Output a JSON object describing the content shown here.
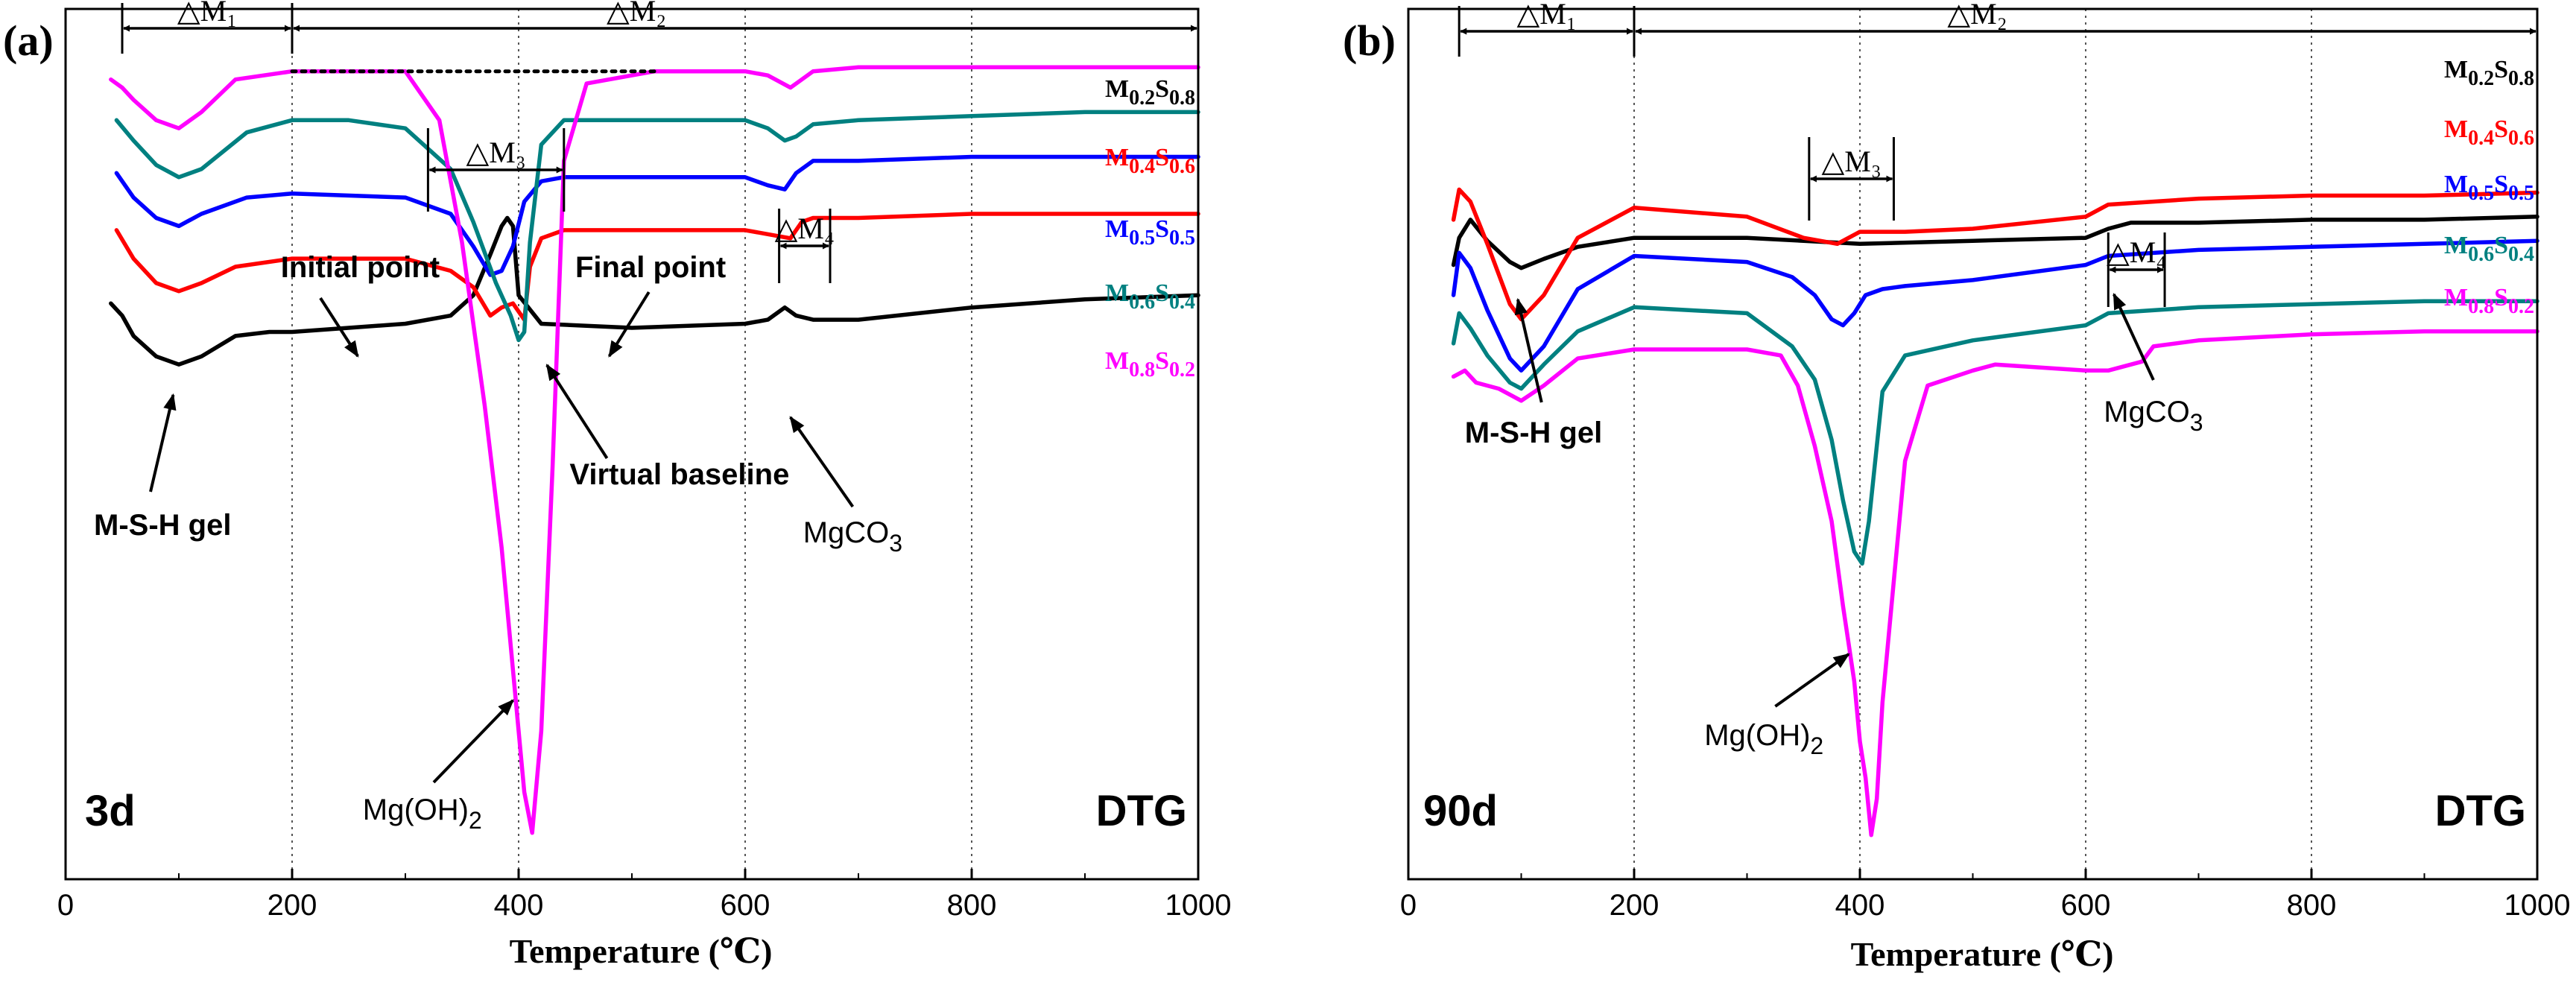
{
  "chart_data": [
    {
      "type": "line",
      "panel_label": "(a)",
      "age_label": "3d",
      "technique_label": "DTG",
      "xlabel_main": "Temperature",
      "xlabel_unit": "(℃)",
      "ylabel": "",
      "xlim": [
        0,
        1000
      ],
      "x_ticks": [
        0,
        200,
        400,
        600,
        800,
        1000
      ],
      "x_tick_labels": [
        "0",
        "200",
        "400",
        "600",
        "800",
        "1000"
      ],
      "vertical_gridlines": [
        200,
        400,
        600,
        800
      ],
      "grid": "dotted vertical lines at 200, 400, 600, 800",
      "legend": "inline labels at right end of each curve",
      "region_labels": {
        "dm1": "△M₁",
        "dm2": "△M₂",
        "dm3": "△M₃",
        "dm4": "△M₄"
      },
      "region_ranges": {
        "dm1": [
          50,
          200
        ],
        "dm2": [
          200,
          1000
        ],
        "dm3": [
          320,
          440
        ],
        "dm4": [
          630,
          675
        ]
      },
      "annotations": {
        "msh": "M-S-H gel",
        "mgoh_main": "Mg(OH)",
        "mgoh_sub": "2",
        "mgco3_main": "MgCO",
        "mgco3_sub": "3",
        "initial_point": "Initial point",
        "final_point": "Final point",
        "virtual_baseline": "Virtual baseline"
      },
      "virtual_baseline_range": [
        200,
        520
      ],
      "series": [
        {
          "label_m": "0.2",
          "label_s": "0.8",
          "color": "#000000",
          "x": [
            40,
            50,
            60,
            80,
            100,
            120,
            150,
            180,
            200,
            250,
            300,
            340,
            360,
            375,
            385,
            390,
            395,
            400,
            420,
            500,
            600,
            620,
            635,
            645,
            660,
            700,
            800,
            900,
            1000
          ],
          "y": [
            6.5,
            6.8,
            7.3,
            7.8,
            8.0,
            7.8,
            7.3,
            7.2,
            7.2,
            7.1,
            7.0,
            6.8,
            6.3,
            5.3,
            4.6,
            4.4,
            4.6,
            6.3,
            7.0,
            7.1,
            7.0,
            6.9,
            6.6,
            6.8,
            6.9,
            6.9,
            6.6,
            6.4,
            6.3
          ]
        },
        {
          "label_m": "0.4",
          "label_s": "0.6",
          "color": "#ff0000",
          "x": [
            45,
            60,
            80,
            100,
            120,
            150,
            200,
            300,
            340,
            360,
            375,
            385,
            395,
            405,
            410,
            420,
            440,
            500,
            600,
            640,
            650,
            660,
            700,
            800,
            900,
            1000
          ],
          "y": [
            4.7,
            5.4,
            6.0,
            6.2,
            6.0,
            5.6,
            5.4,
            5.4,
            5.7,
            6.1,
            6.8,
            6.6,
            6.5,
            6.9,
            5.6,
            4.9,
            4.7,
            4.7,
            4.7,
            4.9,
            4.5,
            4.4,
            4.4,
            4.3,
            4.3,
            4.3
          ]
        },
        {
          "label_m": "0.5",
          "label_s": "0.5",
          "color": "#0000ff",
          "x": [
            45,
            60,
            80,
            100,
            120,
            160,
            200,
            300,
            340,
            360,
            375,
            385,
            395,
            405,
            420,
            440,
            500,
            600,
            620,
            635,
            645,
            660,
            700,
            800,
            900,
            1000
          ],
          "y": [
            3.3,
            3.9,
            4.4,
            4.6,
            4.3,
            3.9,
            3.8,
            3.9,
            4.3,
            5.1,
            5.8,
            5.7,
            5.1,
            4.0,
            3.5,
            3.4,
            3.4,
            3.4,
            3.6,
            3.7,
            3.3,
            3.0,
            3.0,
            2.9,
            2.9,
            2.9
          ]
        },
        {
          "label_m": "0.6",
          "label_s": "0.4",
          "color": "#008080",
          "x": [
            45,
            60,
            80,
            100,
            120,
            160,
            200,
            250,
            300,
            340,
            360,
            380,
            393,
            400,
            405,
            410,
            420,
            440,
            500,
            600,
            620,
            635,
            645,
            660,
            700,
            800,
            900,
            1000
          ],
          "y": [
            2.0,
            2.5,
            3.1,
            3.4,
            3.2,
            2.3,
            2.0,
            2.0,
            2.2,
            3.2,
            4.5,
            6.0,
            6.8,
            7.4,
            7.2,
            5.0,
            2.6,
            2.0,
            2.0,
            2.0,
            2.2,
            2.5,
            2.4,
            2.1,
            2.0,
            1.9,
            1.8,
            1.8
          ]
        },
        {
          "label_m": "0.8",
          "label_s": "0.2",
          "color": "#ff00ff",
          "x": [
            40,
            50,
            60,
            80,
            100,
            120,
            150,
            200,
            300,
            330,
            350,
            370,
            385,
            395,
            405,
            412,
            420,
            430,
            440,
            460,
            520,
            600,
            620,
            640,
            650,
            660,
            700,
            800,
            900,
            1000
          ],
          "y": [
            1.0,
            1.2,
            1.5,
            2.0,
            2.2,
            1.8,
            1.0,
            0.8,
            0.8,
            2.0,
            5.0,
            9.0,
            12.5,
            15.5,
            18.5,
            19.5,
            17.0,
            10.5,
            3.0,
            1.1,
            0.8,
            0.8,
            0.9,
            1.2,
            1.0,
            0.8,
            0.7,
            0.7,
            0.7,
            0.7
          ]
        }
      ]
    },
    {
      "type": "line",
      "panel_label": "(b)",
      "age_label": "90d",
      "technique_label": "DTG",
      "xlabel_main": "Temperature",
      "xlabel_unit": "(℃)",
      "ylabel": "",
      "xlim": [
        0,
        1000
      ],
      "x_ticks": [
        0,
        200,
        400,
        600,
        800,
        1000
      ],
      "x_tick_labels": [
        "0",
        "200",
        "400",
        "600",
        "800",
        "1000"
      ],
      "vertical_gridlines": [
        200,
        400,
        600,
        800
      ],
      "grid": "dotted vertical lines at 200, 400, 600, 800",
      "legend": "inline labels at right end of each curve",
      "region_labels": {
        "dm1": "△M₁",
        "dm2": "△M₂",
        "dm3": "△M₃",
        "dm4": "△M₄"
      },
      "region_ranges": {
        "dm1": [
          45,
          200
        ],
        "dm2": [
          200,
          1000
        ],
        "dm3": [
          355,
          430
        ],
        "dm4": [
          620,
          670
        ]
      },
      "annotations": {
        "msh": "M-S-H gel",
        "mgoh_main": "Mg(OH)",
        "mgoh_sub": "2",
        "mgco3_main": "MgCO",
        "mgco3_sub": "3"
      },
      "series": [
        {
          "label_m": "0.2",
          "label_s": "0.8",
          "color": "#000000",
          "x": [
            40,
            45,
            55,
            70,
            90,
            100,
            120,
            150,
            200,
            300,
            400,
            500,
            600,
            620,
            640,
            700,
            800,
            900,
            1000
          ],
          "y": [
            7.5,
            6.6,
            6.0,
            6.7,
            7.4,
            7.6,
            7.3,
            6.9,
            6.6,
            6.6,
            6.8,
            6.7,
            6.6,
            6.3,
            6.1,
            6.1,
            6.0,
            6.0,
            5.9
          ]
        },
        {
          "label_m": "0.4",
          "label_s": "0.6",
          "color": "#ff0000",
          "x": [
            40,
            45,
            55,
            70,
            90,
            100,
            120,
            150,
            200,
            300,
            350,
            380,
            400,
            440,
            500,
            600,
            620,
            700,
            800,
            900,
            1000
          ],
          "y": [
            6.0,
            5.0,
            5.4,
            6.8,
            8.8,
            9.3,
            8.5,
            6.6,
            5.6,
            5.9,
            6.6,
            6.8,
            6.4,
            6.4,
            6.3,
            5.9,
            5.5,
            5.3,
            5.2,
            5.2,
            5.1
          ]
        },
        {
          "label_m": "0.5",
          "label_s": "0.5",
          "color": "#0000ff",
          "x": [
            40,
            45,
            55,
            70,
            90,
            100,
            120,
            150,
            200,
            300,
            340,
            360,
            375,
            385,
            395,
            405,
            420,
            440,
            500,
            600,
            620,
            700,
            800,
            900,
            1000
          ],
          "y": [
            8.5,
            7.1,
            7.6,
            9.0,
            10.6,
            11.0,
            10.2,
            8.3,
            7.2,
            7.4,
            7.9,
            8.5,
            9.3,
            9.5,
            9.1,
            8.5,
            8.3,
            8.2,
            8.0,
            7.5,
            7.2,
            7.0,
            6.9,
            6.8,
            6.7
          ]
        },
        {
          "label_m": "0.6",
          "label_s": "0.4",
          "color": "#008080",
          "x": [
            40,
            45,
            55,
            70,
            90,
            100,
            120,
            150,
            200,
            300,
            340,
            360,
            375,
            385,
            395,
            402,
            408,
            420,
            440,
            500,
            600,
            620,
            700,
            800,
            900,
            1000
          ],
          "y": [
            10.1,
            9.1,
            9.6,
            10.5,
            11.4,
            11.6,
            10.8,
            9.7,
            8.9,
            9.1,
            10.2,
            11.3,
            13.3,
            15.3,
            17.0,
            17.4,
            16.0,
            11.7,
            10.5,
            10.0,
            9.5,
            9.1,
            8.9,
            8.8,
            8.7,
            8.7
          ]
        },
        {
          "label_m": "0.8",
          "label_s": "0.2",
          "color": "#ff00ff",
          "x": [
            40,
            50,
            60,
            80,
            100,
            120,
            150,
            200,
            300,
            330,
            345,
            360,
            375,
            385,
            395,
            400,
            405,
            410,
            415,
            420,
            430,
            440,
            460,
            500,
            520,
            600,
            620,
            650,
            660,
            700,
            800,
            900,
            1000
          ],
          "y": [
            11.2,
            11.0,
            11.4,
            11.6,
            12.0,
            11.5,
            10.6,
            10.3,
            10.3,
            10.5,
            11.5,
            13.5,
            16.0,
            18.8,
            21.3,
            23.3,
            24.5,
            26.4,
            25.2,
            22.0,
            18.0,
            14.0,
            11.5,
            11.0,
            10.8,
            11.0,
            11.0,
            10.7,
            10.2,
            10.0,
            9.8,
            9.7,
            9.7
          ]
        }
      ]
    }
  ]
}
